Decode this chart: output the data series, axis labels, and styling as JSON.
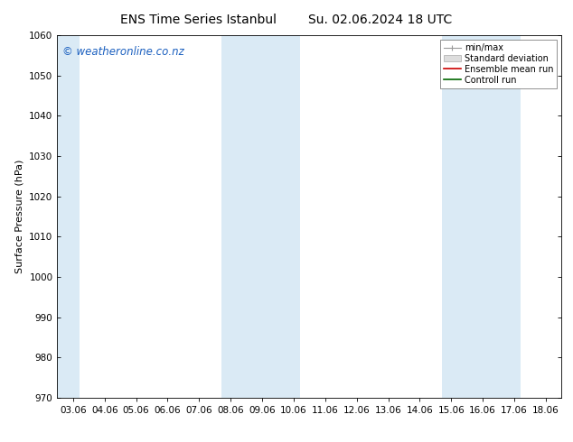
{
  "title1": "ENS Time Series Istanbul",
  "title2": "Su. 02.06.2024 18 UTC",
  "ylabel": "Surface Pressure (hPa)",
  "ylim": [
    970,
    1060
  ],
  "yticks": [
    970,
    980,
    990,
    1000,
    1010,
    1020,
    1030,
    1040,
    1050,
    1060
  ],
  "xtick_labels": [
    "03.06",
    "04.06",
    "05.06",
    "06.06",
    "07.06",
    "08.06",
    "09.06",
    "10.06",
    "11.06",
    "12.06",
    "13.06",
    "14.06",
    "15.06",
    "16.06",
    "17.06",
    "18.06"
  ],
  "xtick_positions": [
    0,
    1,
    2,
    3,
    4,
    5,
    6,
    7,
    8,
    9,
    10,
    11,
    12,
    13,
    14,
    15
  ],
  "shaded_bands": [
    {
      "xmin": -0.5,
      "xmax": 0.2
    },
    {
      "xmin": 4.7,
      "xmax": 7.2
    },
    {
      "xmin": 11.7,
      "xmax": 14.2
    }
  ],
  "shade_color": "#daeaf5",
  "background_color": "#ffffff",
  "watermark": "© weatheronline.co.nz",
  "watermark_color": "#1a5fbf",
  "legend_entries": [
    {
      "label": "min/max",
      "color": "#999999",
      "lw": 0.8
    },
    {
      "label": "Standard deviation",
      "color": "#cccccc",
      "lw": 6
    },
    {
      "label": "Ensemble mean run",
      "color": "#cc0000",
      "lw": 1.2
    },
    {
      "label": "Controll run",
      "color": "#006600",
      "lw": 1.2
    }
  ],
  "title_fontsize": 10,
  "axis_label_fontsize": 8,
  "tick_fontsize": 7.5,
  "watermark_fontsize": 8.5,
  "legend_fontsize": 7
}
